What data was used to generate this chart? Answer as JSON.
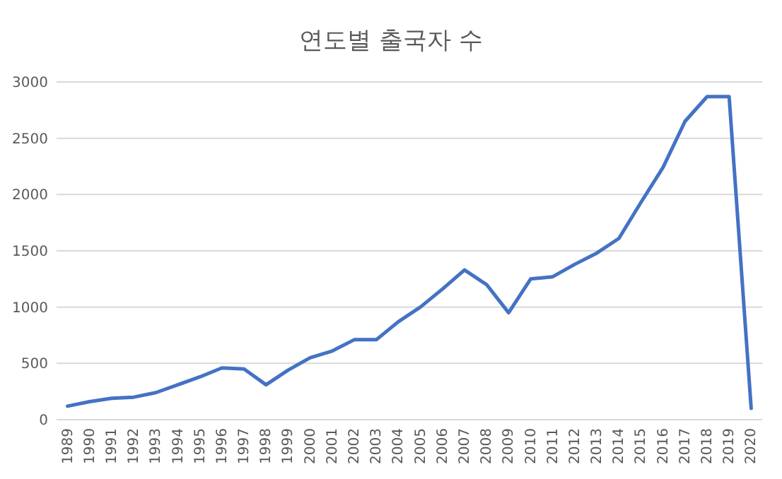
{
  "chart_data": {
    "type": "line",
    "title": "연도별 출국자 수",
    "categories": [
      "1989",
      "1990",
      "1991",
      "1992",
      "1993",
      "1994",
      "1995",
      "1996",
      "1997",
      "1998",
      "1999",
      "2000",
      "2001",
      "2002",
      "2003",
      "2004",
      "2005",
      "2006",
      "2007",
      "2008",
      "2009",
      "2010",
      "2011",
      "2012",
      "2013",
      "2014",
      "2015",
      "2016",
      "2017",
      "2018",
      "2019",
      "2020"
    ],
    "series": [
      {
        "color": "#4472c4",
        "values": [
          120,
          160,
          190,
          200,
          240,
          310,
          380,
          460,
          450,
          310,
          440,
          550,
          610,
          710,
          710,
          870,
          1000,
          1160,
          1330,
          1200,
          950,
          1250,
          1270,
          1380,
          1480,
          1610,
          1930,
          2240,
          2650,
          2870,
          2870,
          100
        ]
      }
    ],
    "ylim": [
      0,
      3000
    ],
    "yticks": [
      0,
      500,
      1000,
      1500,
      2000,
      2500,
      3000
    ],
    "grid": "y",
    "marker": "none",
    "line_style": "solid"
  }
}
